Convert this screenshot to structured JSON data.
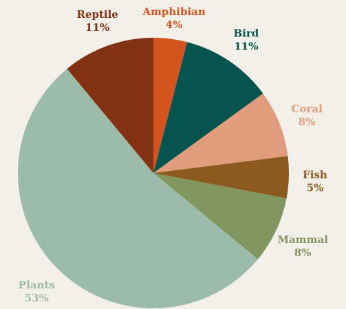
{
  "chart_data": {
    "type": "pie",
    "title": "",
    "start_angle_deg": 0,
    "direction": "clockwise",
    "legend": "none",
    "slices": [
      {
        "label": "Amphibian",
        "value": 4,
        "pct_label": "4%",
        "color": "#d45420"
      },
      {
        "label": "Bird",
        "value": 11,
        "pct_label": "11%",
        "color": "#07544f"
      },
      {
        "label": "Coral",
        "value": 8,
        "pct_label": "8%",
        "color": "#e09c7d"
      },
      {
        "label": "Fish",
        "value": 5,
        "pct_label": "5%",
        "color": "#8b5a1f"
      },
      {
        "label": "Mammal",
        "value": 8,
        "pct_label": "8%",
        "color": "#82965f"
      },
      {
        "label": "Plants",
        "value": 53,
        "pct_label": "53%",
        "color": "#9dbbab"
      },
      {
        "label": "Reptile",
        "value": 11,
        "pct_label": "11%",
        "color": "#823213"
      }
    ]
  },
  "colors": {
    "background": "#f3efe9"
  }
}
